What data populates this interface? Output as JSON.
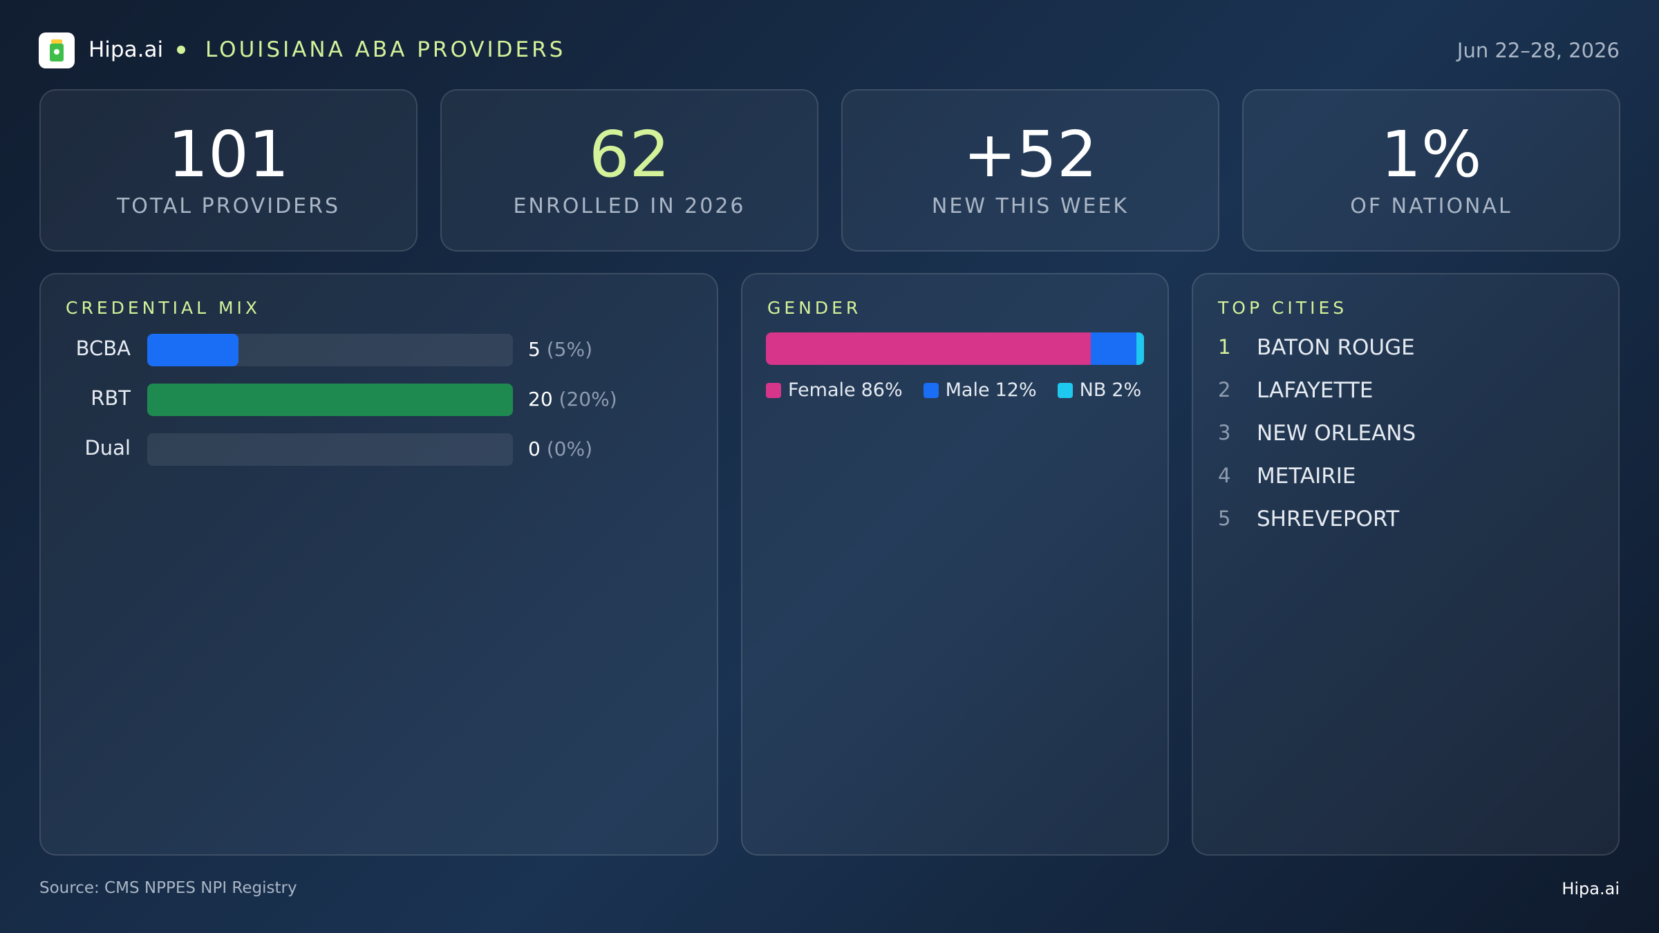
{
  "header": {
    "brand": "Hipa.ai",
    "title": "LOUISIANA ABA PROVIDERS",
    "date": "Jun 22–28, 2026"
  },
  "kpis": [
    {
      "value": "101",
      "label": "TOTAL PROVIDERS",
      "color": "#ffffff"
    },
    {
      "value": "62",
      "label": "ENROLLED IN 2026",
      "color": "#d4f29a"
    },
    {
      "value": "+52",
      "label": "NEW THIS WEEK",
      "color": "#ffffff"
    },
    {
      "value": "1%",
      "label": "OF NATIONAL",
      "color": "#ffffff"
    }
  ],
  "credential_mix": {
    "title": "CREDENTIAL MIX",
    "rows": [
      {
        "label": "BCBA",
        "value": 5,
        "share": {
          "value": 5,
          "label": "(5%)"
        },
        "color": "#1a6ef5"
      },
      {
        "label": "RBT",
        "value": 20,
        "share": {
          "value": 20,
          "label": "(20%)"
        },
        "color": "#1e8a50"
      },
      {
        "label": "Dual",
        "value": 0,
        "share": {
          "value": 0,
          "label": "(0%)"
        },
        "color": "#1a6ef5"
      }
    ]
  },
  "gender": {
    "title": "GENDER",
    "segments": [
      {
        "name": "Female",
        "value": 86,
        "value_label": "86%",
        "color": "#d6358a"
      },
      {
        "name": "Male",
        "value": 12,
        "value_label": "12%",
        "color": "#1a6ef5"
      },
      {
        "name": "NB",
        "value": 2,
        "value_label": "2%",
        "color": "#1fc8ee"
      }
    ]
  },
  "top_cities": {
    "title": "TOP CITIES",
    "items": [
      {
        "rank": 1,
        "name": "BATON ROUGE"
      },
      {
        "rank": 2,
        "name": "LAFAYETTE"
      },
      {
        "rank": 3,
        "name": "NEW ORLEANS"
      },
      {
        "rank": 4,
        "name": "METAIRIE"
      },
      {
        "rank": 5,
        "name": "SHREVEPORT"
      }
    ]
  },
  "footer": {
    "source": "Source: CMS NPPES NPI Registry",
    "brand": "Hipa.ai"
  }
}
